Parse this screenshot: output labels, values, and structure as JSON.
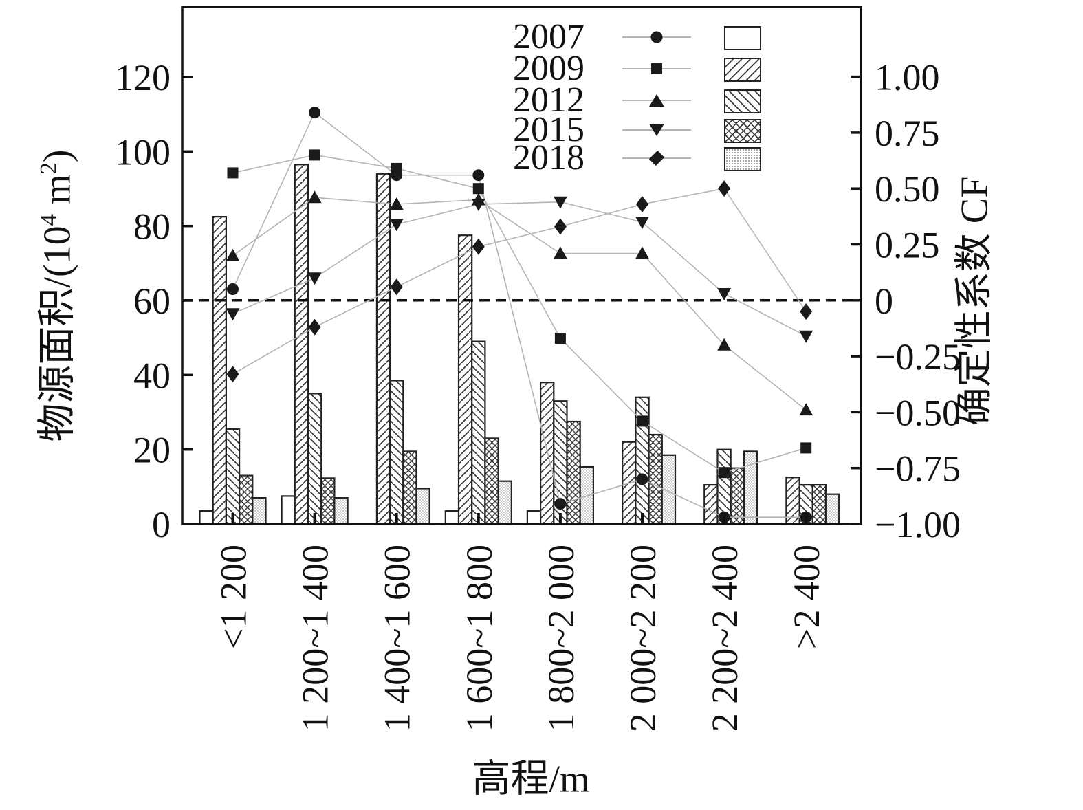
{
  "chart_data": {
    "type": "bar+line-combo",
    "title": "",
    "xlabel": "高程/m",
    "categories": [
      "<1 200",
      "1 200~1 400",
      "1 400~1 600",
      "1 600~1 800",
      "1 800~2 000",
      "2 000~2 200",
      "2 200~2 400",
      ">2 400"
    ],
    "left_axis": {
      "label": "物源面积/(10⁴ m²)",
      "label_parts": {
        "p1": "物源面积/(10",
        "sup1": "4",
        "p2": " m",
        "sup2": "2",
        "p3": ")"
      },
      "ticks": [
        0,
        20,
        40,
        60,
        80,
        100,
        120
      ],
      "range": [
        0,
        138.8
      ]
    },
    "right_axis": {
      "label": "确定性系数 CF",
      "tick_values": [
        1.0,
        0.75,
        0.5,
        0.25,
        0,
        -0.25,
        -0.5,
        -0.75,
        -1.0
      ],
      "tick_labels": [
        "1.00",
        "0.75",
        "0.50",
        "0.25",
        "0",
        "−0.25",
        "−0.50",
        "−0.75",
        "−1.00"
      ],
      "range": [
        -1.0,
        1.135
      ]
    },
    "dashed_reference_line": {
      "cf_value": 0,
      "left_axis_value": 60
    },
    "bar_series": [
      {
        "name": "2007",
        "pattern": "plain",
        "values": [
          3.5,
          7.5,
          0,
          3.5,
          3.5,
          0,
          0,
          0
        ]
      },
      {
        "name": "2009",
        "pattern": "hatch-fwd",
        "values": [
          82.5,
          96.5,
          94,
          77.5,
          38,
          22,
          10.5,
          12.5
        ]
      },
      {
        "name": "2012",
        "pattern": "hatch-back",
        "values": [
          25.5,
          35,
          38.5,
          49,
          33,
          34,
          20,
          10.5
        ]
      },
      {
        "name": "2015",
        "pattern": "crosshatch",
        "values": [
          13,
          12.3,
          19.5,
          23,
          27.5,
          24,
          15,
          10.5
        ]
      },
      {
        "name": "2018",
        "pattern": "dots",
        "values": [
          7,
          7,
          9.5,
          11.5,
          15.3,
          18.5,
          19.5,
          8
        ]
      }
    ],
    "cf_series": [
      {
        "name": "2007",
        "marker": "circle",
        "values": [
          0.05,
          0.84,
          0.56,
          0.56,
          -0.91,
          -0.8,
          -0.97,
          -0.97
        ]
      },
      {
        "name": "2009",
        "marker": "square",
        "values": [
          0.57,
          0.65,
          0.59,
          0.5,
          -0.17,
          -0.54,
          -0.77,
          -0.66
        ]
      },
      {
        "name": "2012",
        "marker": "triangle-up",
        "values": [
          0.2,
          0.46,
          0.43,
          0.45,
          0.21,
          0.21,
          -0.2,
          -0.49
        ]
      },
      {
        "name": "2015",
        "marker": "triangle-down",
        "values": [
          -0.06,
          0.1,
          0.34,
          0.43,
          0.44,
          0.35,
          0.03,
          -0.16
        ]
      },
      {
        "name": "2018",
        "marker": "diamond",
        "values": [
          -0.33,
          -0.12,
          0.06,
          0.24,
          0.33,
          0.43,
          0.5,
          -0.05
        ]
      }
    ],
    "legend": [
      {
        "label": "2007",
        "marker": "circle",
        "pattern": "plain"
      },
      {
        "label": "2009",
        "marker": "square",
        "pattern": "hatch-fwd"
      },
      {
        "label": "2012",
        "marker": "triangle-up",
        "pattern": "hatch-back"
      },
      {
        "label": "2015",
        "marker": "triangle-down",
        "pattern": "crosshatch"
      },
      {
        "label": "2018",
        "marker": "diamond",
        "pattern": "dots"
      }
    ],
    "colors": {
      "ink": "#111111",
      "marker": "#1a1a1a",
      "series_line": "#b4b4b4",
      "hatch": "#3a3a3a",
      "dots": "#8d8d8d"
    },
    "legend_position": "top-center-inside",
    "grid": "off"
  }
}
